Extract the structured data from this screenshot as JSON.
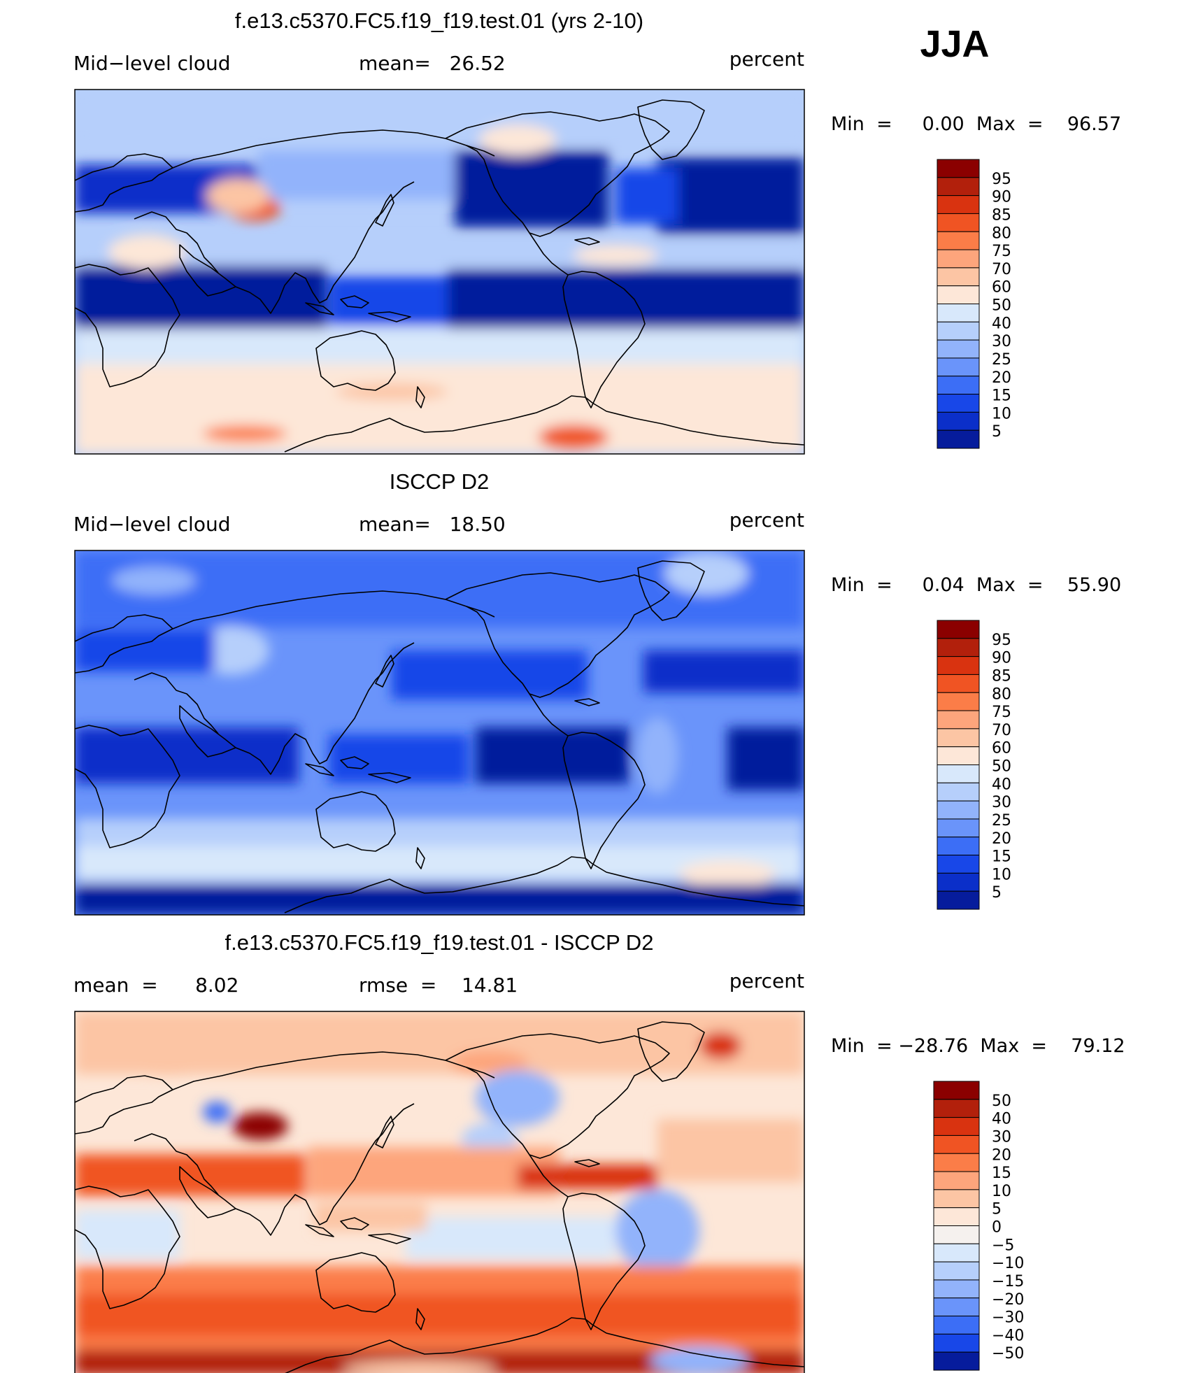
{
  "season": "JJA",
  "chart_data": [
    {
      "type": "heatmap",
      "title": "f.e13.c5370.FC5.f19_f19.test.01 (yrs 2-10)",
      "left_label": "Mid−level cloud",
      "center_label": "mean=   26.52",
      "units": "percent",
      "minmax": "Min  =     0.00  Max  =    96.57",
      "mean": 26.52,
      "min": 0.0,
      "max": 96.57,
      "colorbar_levels": [
        "95",
        "90",
        "85",
        "80",
        "75",
        "70",
        "60",
        "50",
        "40",
        "30",
        "25",
        "20",
        "15",
        "10",
        "5"
      ],
      "colorbar_colors": [
        "#8b0000",
        "#b2200c",
        "#d93310",
        "#f05423",
        "#fb7d48",
        "#fda57c",
        "#fcc5a4",
        "#fde7d8",
        "#d8e8fb",
        "#b6cffb",
        "#92b3fb",
        "#6a94fa",
        "#3c6ef6",
        "#1847e8",
        "#0b2fc9",
        "#061c9c"
      ]
    },
    {
      "type": "heatmap",
      "title": "ISCCP D2",
      "left_label": "Mid−level cloud",
      "center_label": "mean=   18.50",
      "units": "percent",
      "minmax": "Min  =     0.04  Max  =    55.90",
      "mean": 18.5,
      "min": 0.04,
      "max": 55.9,
      "colorbar_levels": [
        "95",
        "90",
        "85",
        "80",
        "75",
        "70",
        "60",
        "50",
        "40",
        "30",
        "25",
        "20",
        "15",
        "10",
        "5"
      ],
      "colorbar_colors": [
        "#8b0000",
        "#b2200c",
        "#d93310",
        "#f05423",
        "#fb7d48",
        "#fda57c",
        "#fcc5a4",
        "#fde7d8",
        "#d8e8fb",
        "#b6cffb",
        "#92b3fb",
        "#6a94fa",
        "#3c6ef6",
        "#1847e8",
        "#0b2fc9",
        "#061c9c"
      ]
    },
    {
      "type": "heatmap",
      "title": "f.e13.c5370.FC5.f19_f19.test.01 - ISCCP D2",
      "left_label": "mean  =      8.02",
      "center_label": "rmse  =    14.81",
      "units": "percent",
      "minmax": "Min  = −28.76  Max  =    79.12",
      "mean": 8.02,
      "rmse": 14.81,
      "min": -28.76,
      "max": 79.12,
      "colorbar_levels": [
        "50",
        "40",
        "30",
        "20",
        "15",
        "10",
        "5",
        "0",
        "−5",
        "−10",
        "−15",
        "−20",
        "−30",
        "−40",
        "−50"
      ],
      "colorbar_colors": [
        "#8b0000",
        "#b2200c",
        "#d93310",
        "#f05423",
        "#fb7d48",
        "#fda57c",
        "#fcc5a4",
        "#fde7d8",
        "#f5f1ee",
        "#d8e8fb",
        "#b6cffb",
        "#92b3fb",
        "#6a94fa",
        "#3c6ef6",
        "#1847e8",
        "#061c9c"
      ]
    }
  ]
}
